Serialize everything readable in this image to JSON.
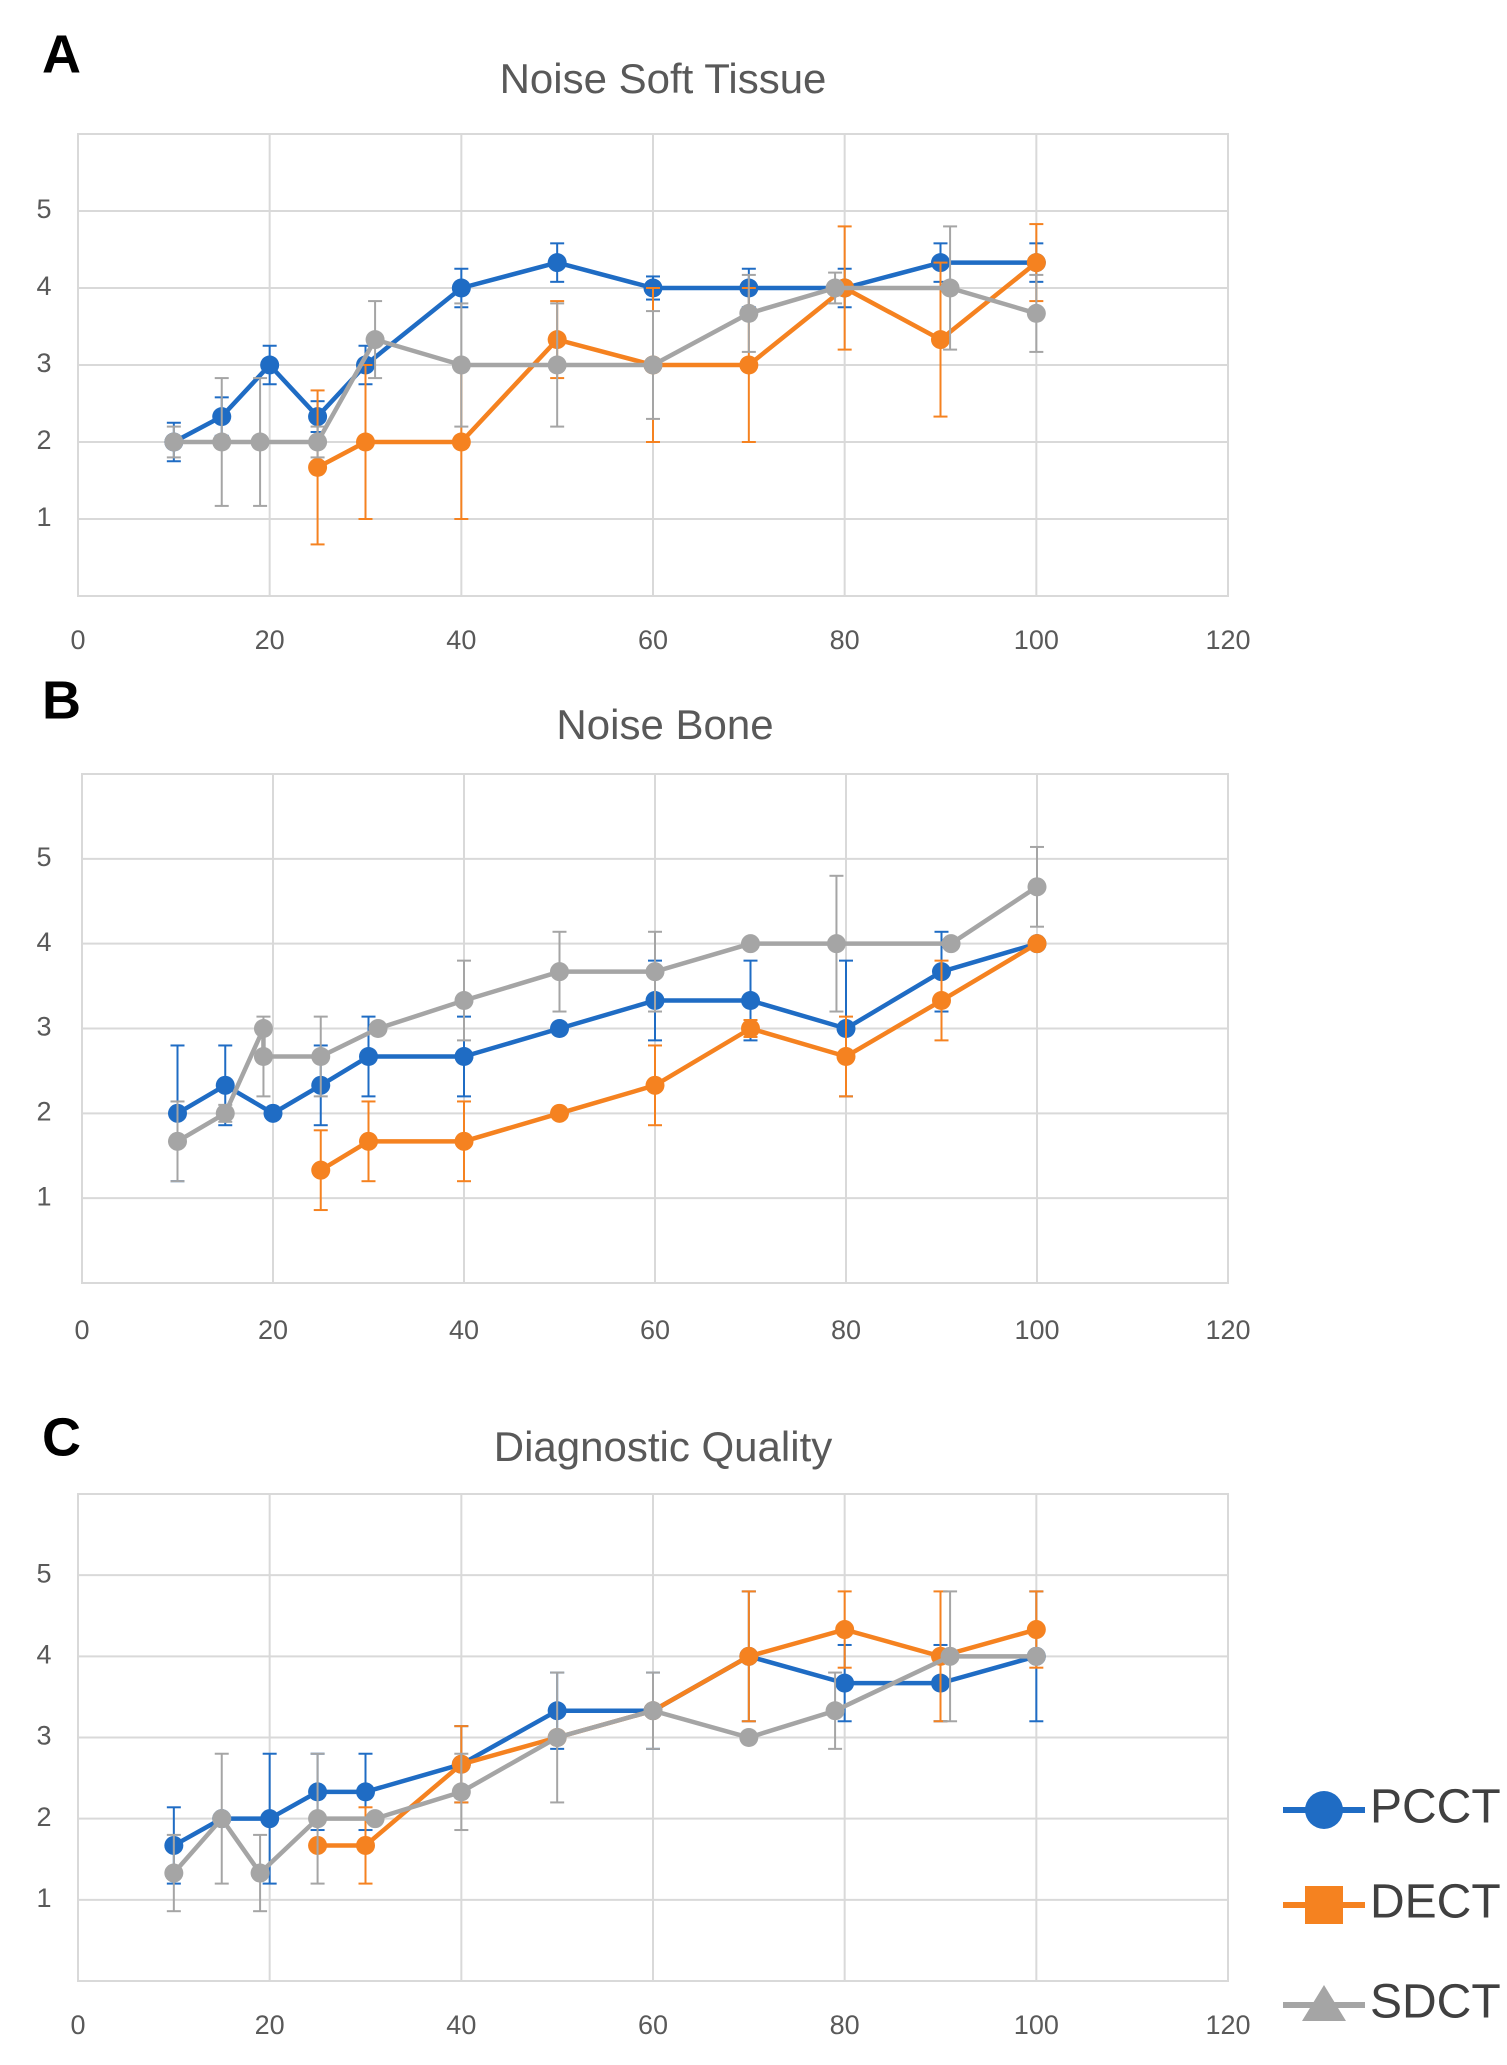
{
  "chart_data": [
    {
      "type": "line",
      "panel": "A",
      "title": "Noise Soft Tissue",
      "xlim": [
        0,
        120
      ],
      "xticks": [
        0,
        20,
        40,
        60,
        80,
        100,
        120
      ],
      "ylim": [
        0,
        6
      ],
      "yticks": [
        1,
        2,
        3,
        4,
        5
      ],
      "grid": true,
      "series": [
        {
          "name": "PCCT",
          "color": "#1f6cc4",
          "x": [
            10,
            15,
            20,
            25,
            30,
            40,
            50,
            60,
            70,
            80,
            90,
            100
          ],
          "values": [
            2,
            2.33,
            3,
            2.33,
            3,
            4,
            4.33,
            4,
            4,
            4,
            4.33,
            4.33
          ],
          "errors": [
            0.25,
            0.25,
            0.25,
            0.2,
            0.25,
            0.25,
            0.25,
            0.15,
            0.25,
            0.25,
            0.25,
            0.25
          ]
        },
        {
          "name": "DECT",
          "color": "#f58220",
          "x": [
            25,
            30,
            40,
            50,
            60,
            70,
            80,
            90,
            100
          ],
          "values": [
            1.67,
            2,
            2,
            3.33,
            3,
            3,
            4,
            3.33,
            4.33
          ],
          "errors": [
            1,
            1,
            1,
            0.5,
            1,
            1,
            0.8,
            1,
            0.5
          ]
        },
        {
          "name": "SDCT",
          "color": "#a5a5a5",
          "x": [
            10,
            15,
            19,
            25,
            31,
            40,
            50,
            60,
            70,
            79,
            91,
            100
          ],
          "values": [
            2,
            2,
            2,
            2,
            3.33,
            3,
            3,
            3,
            3.67,
            4,
            4,
            3.67
          ],
          "errors": [
            0.2,
            0.83,
            0.83,
            0.2,
            0.5,
            0.8,
            0.8,
            0.7,
            0.5,
            0.2,
            0.8,
            0.5
          ]
        }
      ]
    },
    {
      "type": "line",
      "panel": "B",
      "title": "Noise Bone",
      "xlim": [
        0,
        120
      ],
      "xticks": [
        0,
        20,
        40,
        60,
        80,
        100,
        120
      ],
      "ylim": [
        0,
        6
      ],
      "yticks": [
        1,
        2,
        3,
        4,
        5
      ],
      "grid": true,
      "series": [
        {
          "name": "PCCT",
          "color": "#1f6cc4",
          "x": [
            10,
            15,
            20,
            25,
            30,
            40,
            50,
            60,
            70,
            80,
            90,
            100
          ],
          "values": [
            2,
            2.33,
            2,
            2.33,
            2.67,
            2.67,
            3,
            3.33,
            3.33,
            3,
            3.67,
            4
          ],
          "errors": [
            0.8,
            0.47,
            0,
            0.47,
            0.47,
            0.47,
            0,
            0.47,
            0.47,
            0.8,
            0.47,
            0
          ]
        },
        {
          "name": "DECT",
          "color": "#f58220",
          "x": [
            25,
            30,
            40,
            50,
            60,
            70,
            80,
            90,
            100
          ],
          "values": [
            1.33,
            1.67,
            1.67,
            2,
            2.33,
            3,
            2.67,
            3.33,
            4
          ],
          "errors": [
            0.47,
            0.47,
            0.47,
            0,
            0.47,
            0.1,
            0.47,
            0.47,
            0
          ]
        },
        {
          "name": "SDCT",
          "color": "#a5a5a5",
          "x": [
            10,
            15,
            19,
            19,
            25,
            31,
            40,
            50,
            60,
            70,
            79,
            91,
            100
          ],
          "values": [
            1.67,
            2,
            3,
            2.67,
            2.67,
            3,
            3.33,
            3.67,
            3.67,
            4,
            4,
            4,
            4.67
          ],
          "errors": [
            0.47,
            0.1,
            0,
            0.47,
            0.47,
            0,
            0.47,
            0.47,
            0.47,
            0,
            0.8,
            0,
            0.47
          ]
        }
      ]
    },
    {
      "type": "line",
      "panel": "C",
      "title": "Diagnostic Quality",
      "xlim": [
        0,
        120
      ],
      "xticks": [
        0,
        20,
        40,
        60,
        80,
        100,
        120
      ],
      "ylim": [
        0,
        6
      ],
      "yticks": [
        1,
        2,
        3,
        4,
        5
      ],
      "grid": true,
      "series": [
        {
          "name": "PCCT",
          "color": "#1f6cc4",
          "x": [
            10,
            15,
            20,
            25,
            30,
            40,
            50,
            60,
            70,
            80,
            90,
            100
          ],
          "values": [
            1.67,
            2,
            2,
            2.33,
            2.33,
            2.67,
            3.33,
            3.33,
            4,
            3.67,
            3.67,
            4
          ],
          "errors": [
            0.47,
            0,
            0.8,
            0.47,
            0.47,
            0.47,
            0.47,
            0.47,
            0.8,
            0.47,
            0.47,
            0.8
          ]
        },
        {
          "name": "DECT",
          "color": "#f58220",
          "x": [
            25,
            30,
            40,
            50,
            60,
            70,
            80,
            90,
            100
          ],
          "values": [
            1.67,
            1.67,
            2.67,
            3,
            3.33,
            4,
            4.33,
            4,
            4.33
          ],
          "errors": [
            0,
            0.47,
            0.47,
            0,
            0,
            0.8,
            0.47,
            0.8,
            0.47
          ]
        },
        {
          "name": "SDCT",
          "color": "#a5a5a5",
          "x": [
            10,
            15,
            19,
            25,
            31,
            40,
            50,
            60,
            70,
            79,
            91,
            100
          ],
          "values": [
            1.33,
            2,
            1.33,
            2,
            2,
            2.33,
            3,
            3.33,
            3,
            3.33,
            4,
            4
          ],
          "errors": [
            0.47,
            0.8,
            0.47,
            0.8,
            0,
            0.47,
            0.8,
            0.47,
            0,
            0.47,
            0.8,
            0
          ]
        }
      ]
    }
  ]
}
